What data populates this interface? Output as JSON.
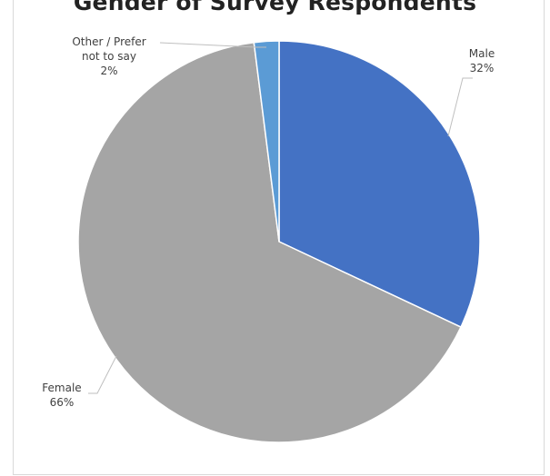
{
  "chart_data": {
    "type": "pie",
    "title": "Gender of Survey Respondents",
    "slices": [
      {
        "name": "Male",
        "value": 32,
        "label_lines": [
          "Male",
          "32%"
        ],
        "color": "#4472c4"
      },
      {
        "name": "Female",
        "value": 66,
        "label_lines": [
          "Female",
          "66%"
        ],
        "color": "#a5a5a5"
      },
      {
        "name": "Other / Prefer not to say",
        "value": 2,
        "label_lines": [
          "Other / Prefer",
          "not to say",
          "2%"
        ],
        "color": "#5b9bd5"
      }
    ],
    "legend": "none"
  }
}
